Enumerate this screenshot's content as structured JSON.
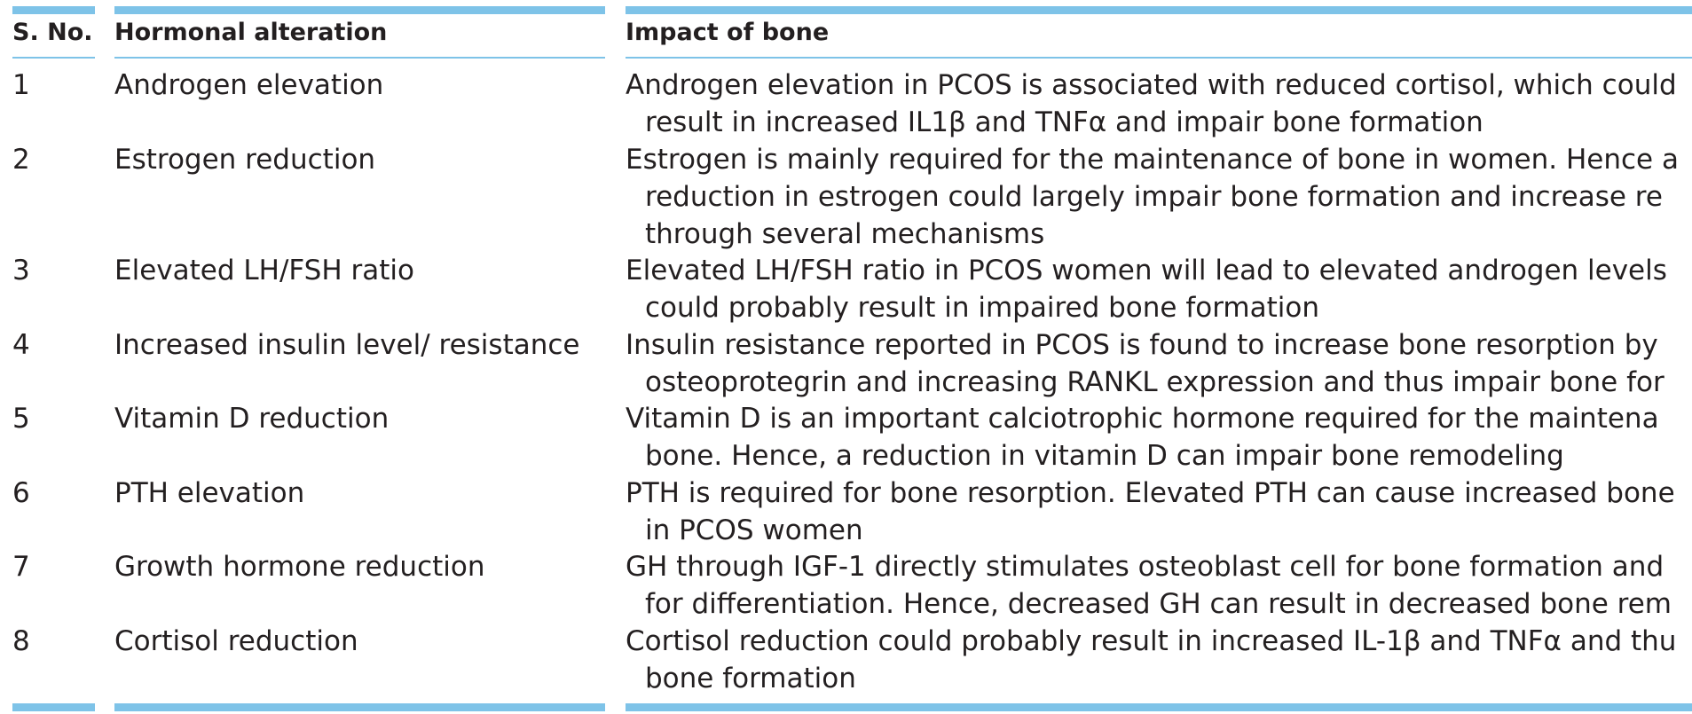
{
  "table": {
    "headers": {
      "sno": "S. No.",
      "alteration": "Hormonal alteration",
      "impact": "Impact of bone"
    },
    "rows": [
      {
        "sno": "1",
        "alteration": "Androgen elevation",
        "impact_lines": [
          "Androgen elevation in PCOS is associated with reduced cortisol, which could",
          "result in increased IL1β and TNFα and impair bone formation"
        ]
      },
      {
        "sno": "2",
        "alteration": "Estrogen reduction",
        "impact_lines": [
          "Estrogen is mainly required for the maintenance of bone in women. Hence a",
          "reduction in estrogen could largely impair bone formation and increase re",
          "through several mechanisms"
        ]
      },
      {
        "sno": "3",
        "alteration": "Elevated LH/FSH ratio",
        "impact_lines": [
          "Elevated LH/FSH ratio in PCOS women will lead to elevated androgen levels",
          "could probably result in impaired bone formation"
        ]
      },
      {
        "sno": "4",
        "alteration": "Increased insulin level/ resistance",
        "impact_lines": [
          "Insulin resistance reported in PCOS is found to increase bone resorption by",
          "osteoprotegrin and increasing RANKL expression and thus impair bone for"
        ]
      },
      {
        "sno": "5",
        "alteration": "Vitamin D reduction",
        "impact_lines": [
          "Vitamin D is an important calciotrophic hormone required for the maintena",
          "bone. Hence, a reduction in vitamin D can impair bone remodeling"
        ]
      },
      {
        "sno": "6",
        "alteration": "PTH elevation",
        "impact_lines": [
          "PTH is required for bone resorption. Elevated PTH can cause increased bone",
          "in PCOS women"
        ]
      },
      {
        "sno": "7",
        "alteration": "Growth hormone reduction",
        "impact_lines": [
          "GH through IGF-1 directly stimulates osteoblast cell for bone formation and",
          "for differentiation. Hence, decreased GH can result in decreased bone rem"
        ]
      },
      {
        "sno": "8",
        "alteration": "Cortisol reduction",
        "impact_lines": [
          "Cortisol reduction could probably result in increased IL-1β and TNFα and thu",
          "bone formation"
        ]
      }
    ]
  }
}
